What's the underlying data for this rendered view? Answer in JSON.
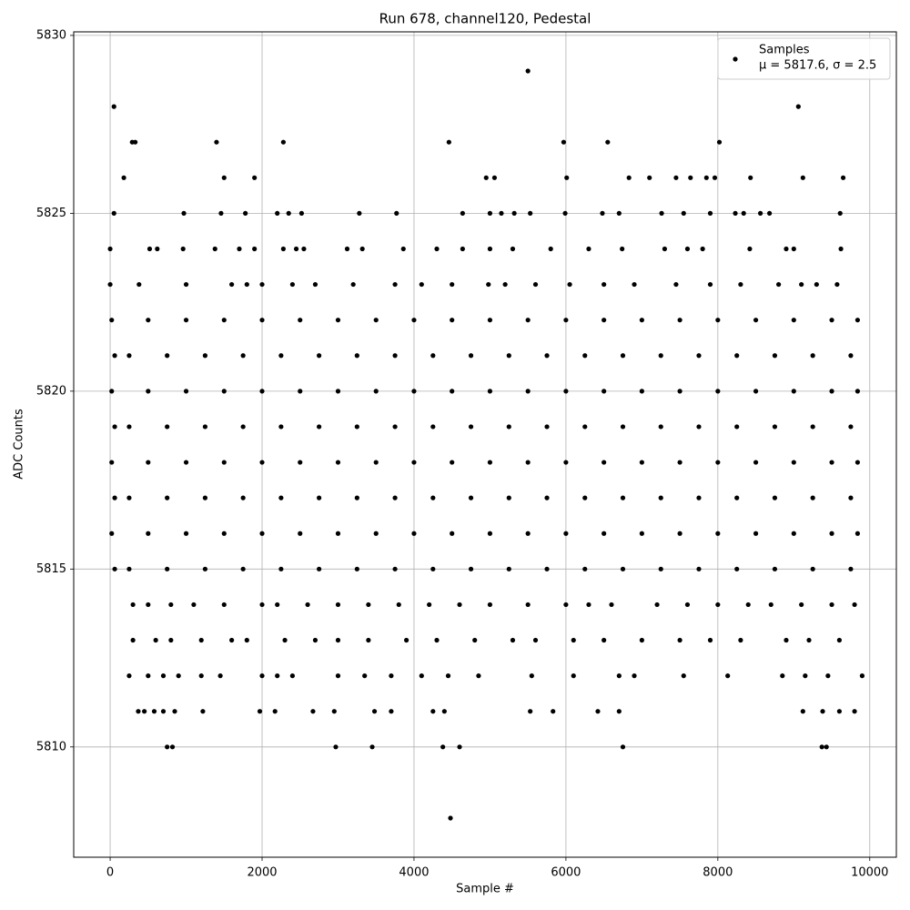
{
  "chart_data": {
    "type": "scatter",
    "title": "Run 678, channel120, Pedestal",
    "x_label": "Sample #",
    "y_label": "ADC Counts",
    "legend_note": "μ = 5817.6, σ = 2.5",
    "legend_position": "upper right",
    "grid": true,
    "xlim": [
      -480,
      10350
    ],
    "ylim": [
      5806.9,
      5830.1
    ],
    "xticks": [
      0,
      2000,
      4000,
      6000,
      8000,
      10000
    ],
    "yticks": [
      5810,
      5815,
      5820,
      5825,
      5830
    ],
    "series": [
      {
        "name": "Samples",
        "color": "#000000",
        "x": [
          50,
          5500,
          9060,
          4480,
          750,
          820,
          2970,
          3450,
          4380,
          4600,
          6750,
          9370,
          9430,
          290,
          330,
          1400,
          2280,
          4460,
          5970,
          6550,
          8020,
          180,
          1500,
          1900,
          4950,
          5060,
          6010,
          6830,
          7100,
          7450,
          7640,
          7850,
          7960,
          8430,
          9120,
          9650,
          50,
          970,
          1460,
          1780,
          2200,
          2350,
          2520,
          3280,
          3770,
          4640,
          5000,
          5150,
          5320,
          5530,
          5990,
          6480,
          6700,
          7260,
          7550,
          7900,
          8230,
          8340,
          8560,
          8680,
          9610,
          0,
          520,
          620,
          960,
          1380,
          1700,
          1900,
          2280,
          2450,
          2550,
          3120,
          3320,
          3860,
          4300,
          4640,
          5000,
          5300,
          5800,
          6300,
          6740,
          7300,
          7600,
          7800,
          8420,
          8900,
          9000,
          9620,
          0,
          380,
          1000,
          1600,
          1800,
          2000,
          2400,
          2700,
          3200,
          3750,
          4100,
          4500,
          4980,
          5200,
          5600,
          6050,
          6500,
          6900,
          7450,
          7900,
          8300,
          8800,
          9100,
          9300,
          9570,
          20,
          500,
          1000,
          1500,
          2000,
          2500,
          3000,
          3500,
          4000,
          4500,
          5000,
          5500,
          6000,
          6500,
          7000,
          7500,
          8000,
          8500,
          9000,
          9500,
          9840,
          60,
          250,
          750,
          1250,
          1750,
          2250,
          2750,
          3250,
          3750,
          4250,
          4750,
          5250,
          5750,
          6250,
          6750,
          7250,
          7750,
          8250,
          8750,
          9250,
          9750,
          20,
          500,
          1000,
          1500,
          2000,
          2500,
          3000,
          3500,
          4000,
          4500,
          5000,
          5500,
          6000,
          6500,
          7000,
          7500,
          8000,
          8500,
          9000,
          9500,
          9840,
          60,
          250,
          750,
          1250,
          1750,
          2250,
          2750,
          3250,
          3750,
          4250,
          4750,
          5250,
          5750,
          6250,
          6750,
          7250,
          7750,
          8250,
          8750,
          9250,
          9750,
          20,
          500,
          1000,
          1500,
          2000,
          2500,
          3000,
          3500,
          4000,
          4500,
          5000,
          5500,
          6000,
          6500,
          7000,
          7500,
          8000,
          8500,
          9000,
          9500,
          9840,
          60,
          250,
          750,
          1250,
          1750,
          2250,
          2750,
          3250,
          3750,
          4250,
          4750,
          5250,
          5750,
          6250,
          6750,
          7250,
          7750,
          8250,
          8750,
          9250,
          9750,
          20,
          500,
          1000,
          1500,
          2000,
          2500,
          3000,
          3500,
          4000,
          4500,
          5000,
          5500,
          6000,
          6500,
          7000,
          7500,
          8000,
          8500,
          9000,
          9500,
          9840,
          60,
          250,
          750,
          1250,
          1750,
          2250,
          2750,
          3250,
          3750,
          4250,
          4750,
          5250,
          5750,
          6250,
          6750,
          7250,
          7750,
          8250,
          8750,
          9250,
          9750,
          300,
          500,
          800,
          1100,
          1500,
          2000,
          2200,
          2600,
          3000,
          3400,
          3800,
          4200,
          4600,
          5000,
          5500,
          6000,
          6300,
          6600,
          7200,
          7600,
          8000,
          8400,
          8700,
          9100,
          9500,
          9800,
          300,
          600,
          800,
          1200,
          1600,
          1800,
          2300,
          2700,
          3000,
          3400,
          3900,
          4300,
          4800,
          5300,
          5600,
          6100,
          6500,
          7000,
          7500,
          7900,
          8300,
          8900,
          9200,
          9600,
          250,
          500,
          700,
          900,
          1200,
          1450,
          2000,
          2200,
          2400,
          3000,
          3350,
          3700,
          4100,
          4450,
          4850,
          5550,
          6100,
          6700,
          6900,
          7550,
          8130,
          8850,
          9150,
          9450,
          9900,
          370,
          450,
          580,
          700,
          850,
          1220,
          1970,
          2170,
          2670,
          2950,
          3480,
          3700,
          4250,
          4400,
          5530,
          5830,
          6420,
          6700,
          9120,
          9380,
          9600,
          9800
        ],
        "values": [
          5828,
          5829,
          5828,
          5808,
          5810,
          5810,
          5810,
          5810,
          5810,
          5810,
          5810,
          5810,
          5810,
          5827,
          5827,
          5827,
          5827,
          5827,
          5827,
          5827,
          5827,
          5826,
          5826,
          5826,
          5826,
          5826,
          5826,
          5826,
          5826,
          5826,
          5826,
          5826,
          5826,
          5826,
          5826,
          5826,
          5825,
          5825,
          5825,
          5825,
          5825,
          5825,
          5825,
          5825,
          5825,
          5825,
          5825,
          5825,
          5825,
          5825,
          5825,
          5825,
          5825,
          5825,
          5825,
          5825,
          5825,
          5825,
          5825,
          5825,
          5825,
          5824,
          5824,
          5824,
          5824,
          5824,
          5824,
          5824,
          5824,
          5824,
          5824,
          5824,
          5824,
          5824,
          5824,
          5824,
          5824,
          5824,
          5824,
          5824,
          5824,
          5824,
          5824,
          5824,
          5824,
          5824,
          5824,
          5824,
          5823,
          5823,
          5823,
          5823,
          5823,
          5823,
          5823,
          5823,
          5823,
          5823,
          5823,
          5823,
          5823,
          5823,
          5823,
          5823,
          5823,
          5823,
          5823,
          5823,
          5823,
          5823,
          5823,
          5823,
          5823,
          5822,
          5822,
          5822,
          5822,
          5822,
          5822,
          5822,
          5822,
          5822,
          5822,
          5822,
          5822,
          5822,
          5822,
          5822,
          5822,
          5822,
          5822,
          5822,
          5822,
          5822,
          5821,
          5821,
          5821,
          5821,
          5821,
          5821,
          5821,
          5821,
          5821,
          5821,
          5821,
          5821,
          5821,
          5821,
          5821,
          5821,
          5821,
          5821,
          5821,
          5821,
          5821,
          5820,
          5820,
          5820,
          5820,
          5820,
          5820,
          5820,
          5820,
          5820,
          5820,
          5820,
          5820,
          5820,
          5820,
          5820,
          5820,
          5820,
          5820,
          5820,
          5820,
          5820,
          5819,
          5819,
          5819,
          5819,
          5819,
          5819,
          5819,
          5819,
          5819,
          5819,
          5819,
          5819,
          5819,
          5819,
          5819,
          5819,
          5819,
          5819,
          5819,
          5819,
          5819,
          5818,
          5818,
          5818,
          5818,
          5818,
          5818,
          5818,
          5818,
          5818,
          5818,
          5818,
          5818,
          5818,
          5818,
          5818,
          5818,
          5818,
          5818,
          5818,
          5818,
          5818,
          5817,
          5817,
          5817,
          5817,
          5817,
          5817,
          5817,
          5817,
          5817,
          5817,
          5817,
          5817,
          5817,
          5817,
          5817,
          5817,
          5817,
          5817,
          5817,
          5817,
          5817,
          5816,
          5816,
          5816,
          5816,
          5816,
          5816,
          5816,
          5816,
          5816,
          5816,
          5816,
          5816,
          5816,
          5816,
          5816,
          5816,
          5816,
          5816,
          5816,
          5816,
          5816,
          5815,
          5815,
          5815,
          5815,
          5815,
          5815,
          5815,
          5815,
          5815,
          5815,
          5815,
          5815,
          5815,
          5815,
          5815,
          5815,
          5815,
          5815,
          5815,
          5815,
          5815,
          5814,
          5814,
          5814,
          5814,
          5814,
          5814,
          5814,
          5814,
          5814,
          5814,
          5814,
          5814,
          5814,
          5814,
          5814,
          5814,
          5814,
          5814,
          5814,
          5814,
          5814,
          5814,
          5814,
          5814,
          5814,
          5814,
          5813,
          5813,
          5813,
          5813,
          5813,
          5813,
          5813,
          5813,
          5813,
          5813,
          5813,
          5813,
          5813,
          5813,
          5813,
          5813,
          5813,
          5813,
          5813,
          5813,
          5813,
          5813,
          5813,
          5813,
          5812,
          5812,
          5812,
          5812,
          5812,
          5812,
          5812,
          5812,
          5812,
          5812,
          5812,
          5812,
          5812,
          5812,
          5812,
          5812,
          5812,
          5812,
          5812,
          5812,
          5812,
          5812,
          5812,
          5812,
          5812,
          5811,
          5811,
          5811,
          5811,
          5811,
          5811,
          5811,
          5811,
          5811,
          5811,
          5811,
          5811,
          5811,
          5811,
          5811,
          5811,
          5811,
          5811,
          5811,
          5811,
          5811,
          5811
        ]
      }
    ]
  }
}
